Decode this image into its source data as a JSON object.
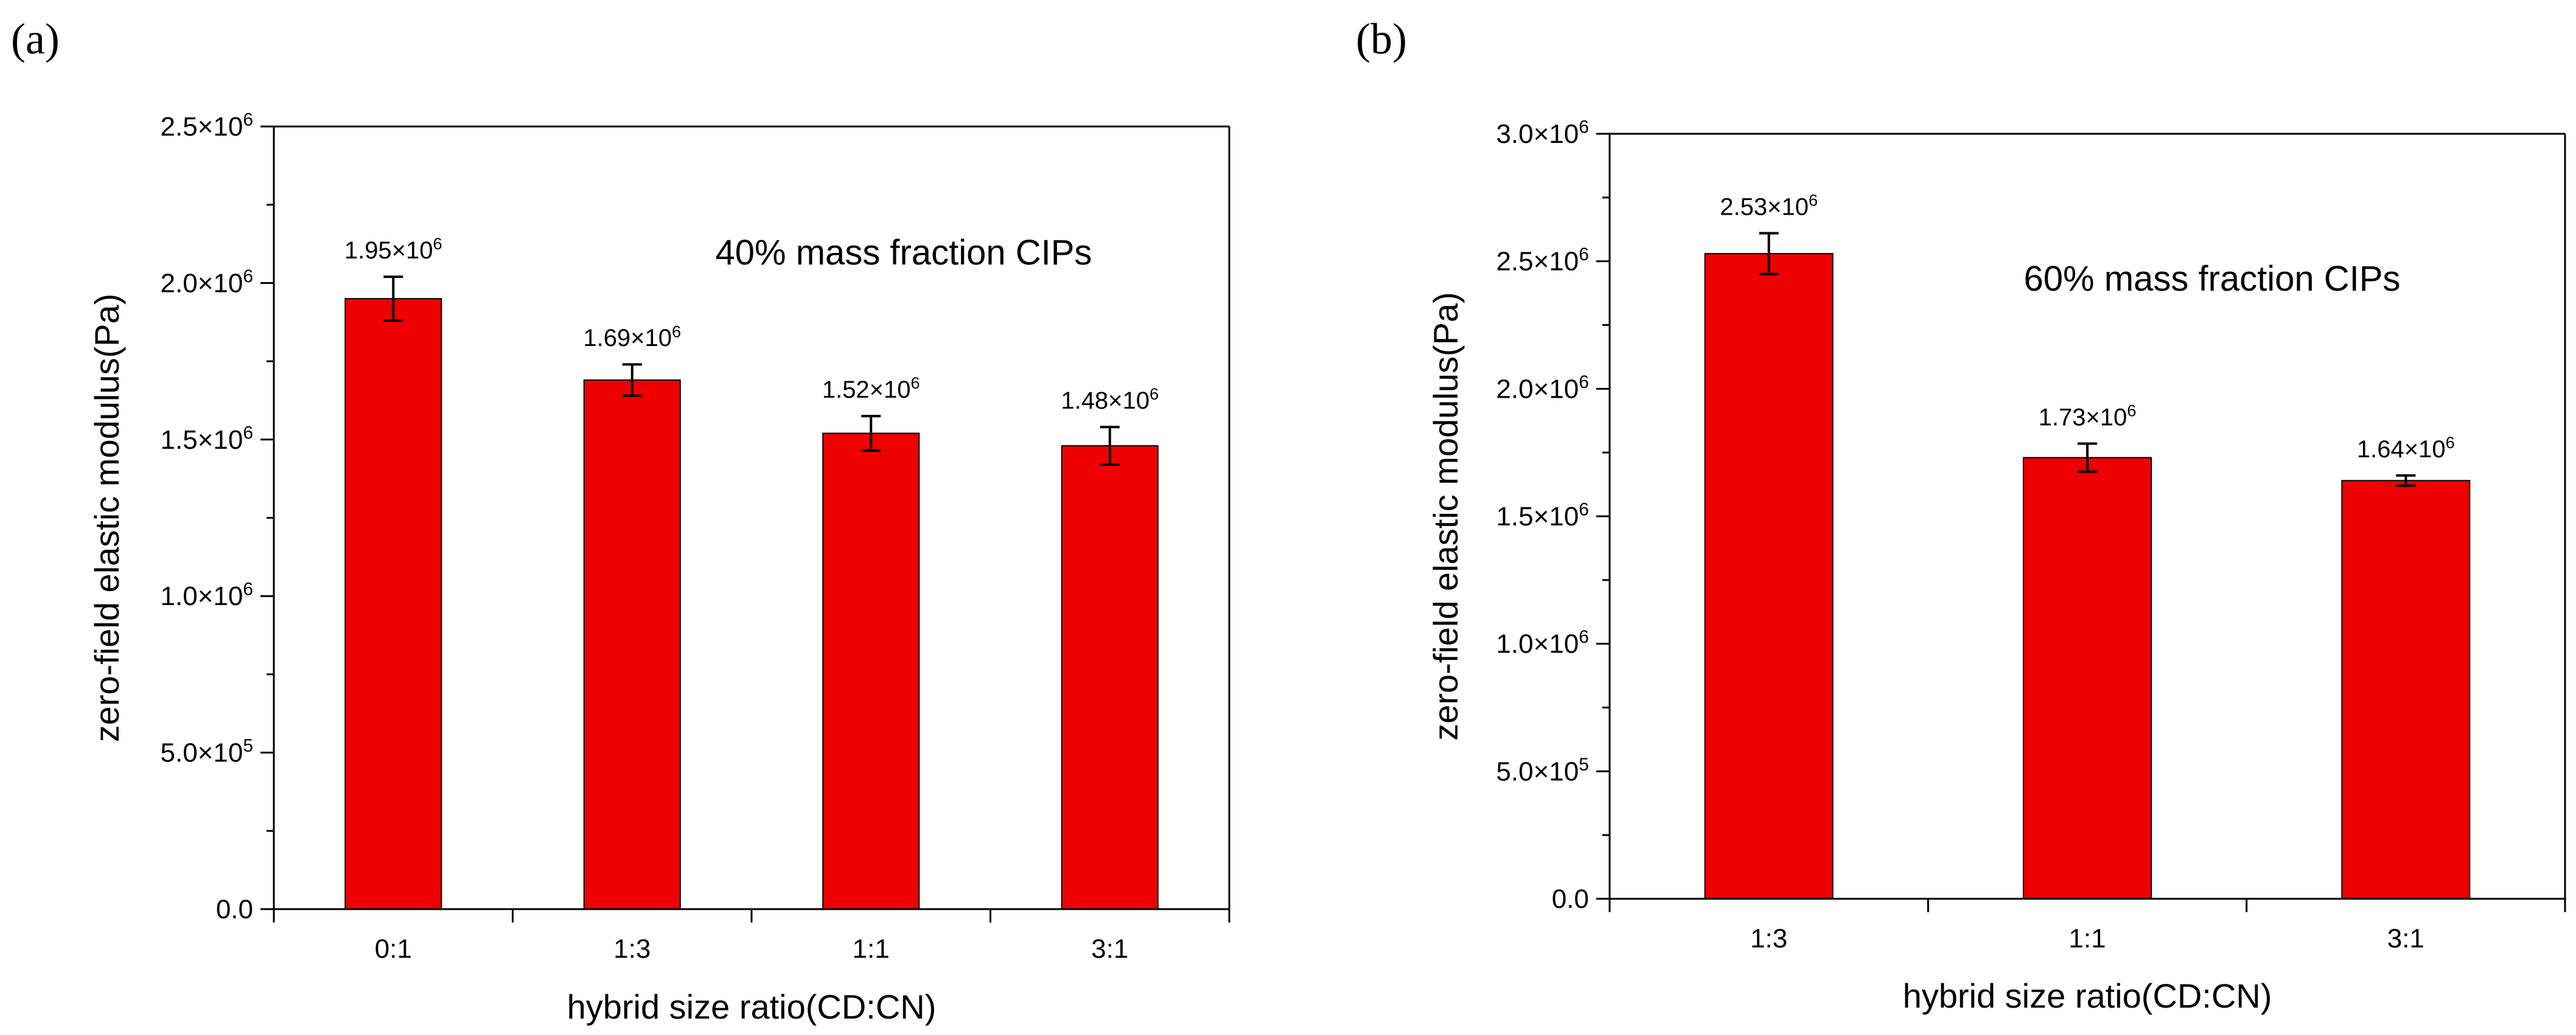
{
  "chart_data": [
    {
      "type": "bar",
      "panel_label": "(a)",
      "title": "",
      "annotation": "40% mass fraction CIPs",
      "xlabel": "hybrid size ratio(CD:CN)",
      "ylabel": "zero-field elastic modulus(Pa)",
      "categories": [
        "0:1",
        "1:3",
        "1:1",
        "3:1"
      ],
      "values": [
        1950000,
        1690000,
        1520000,
        1480000
      ],
      "errors": [
        70000,
        50000,
        55000,
        60000
      ],
      "data_labels": [
        {
          "mantissa": "1.95×10",
          "exp": "6"
        },
        {
          "mantissa": "1.69×10",
          "exp": "6"
        },
        {
          "mantissa": "1.52×10",
          "exp": "6"
        },
        {
          "mantissa": "1.48×10",
          "exp": "6"
        }
      ],
      "ylim": [
        0,
        2500000
      ],
      "yticks": [
        {
          "value": 0,
          "mantissa": "0.0",
          "exp": ""
        },
        {
          "value": 500000,
          "mantissa": "5.0×10",
          "exp": "5"
        },
        {
          "value": 1000000,
          "mantissa": "1.0×10",
          "exp": "6"
        },
        {
          "value": 1500000,
          "mantissa": "1.5×10",
          "exp": "6"
        },
        {
          "value": 2000000,
          "mantissa": "2.0×10",
          "exp": "6"
        },
        {
          "value": 2500000,
          "mantissa": "2.5×10",
          "exp": "6"
        }
      ],
      "bar_color": "#ee0000",
      "grid": false
    },
    {
      "type": "bar",
      "panel_label": "(b)",
      "title": "",
      "annotation": "60% mass fraction CIPs",
      "xlabel": "hybrid size ratio(CD:CN)",
      "ylabel": "zero-field elastic modulus(Pa)",
      "categories": [
        "1:3",
        "1:1",
        "3:1"
      ],
      "values": [
        2530000,
        1730000,
        1640000
      ],
      "errors": [
        80000,
        55000,
        20000
      ],
      "data_labels": [
        {
          "mantissa": "2.53×10",
          "exp": "6"
        },
        {
          "mantissa": "1.73×10",
          "exp": "6"
        },
        {
          "mantissa": "1.64×10",
          "exp": "6"
        }
      ],
      "ylim": [
        0,
        3000000
      ],
      "yticks": [
        {
          "value": 0,
          "mantissa": "0.0",
          "exp": ""
        },
        {
          "value": 500000,
          "mantissa": "5.0×10",
          "exp": "5"
        },
        {
          "value": 1000000,
          "mantissa": "1.0×10",
          "exp": "6"
        },
        {
          "value": 1500000,
          "mantissa": "1.5×10",
          "exp": "6"
        },
        {
          "value": 2000000,
          "mantissa": "2.0×10",
          "exp": "6"
        },
        {
          "value": 2500000,
          "mantissa": "2.5×10",
          "exp": "6"
        },
        {
          "value": 3000000,
          "mantissa": "3.0×10",
          "exp": "6"
        }
      ],
      "bar_color": "#ee0000",
      "grid": false
    }
  ]
}
